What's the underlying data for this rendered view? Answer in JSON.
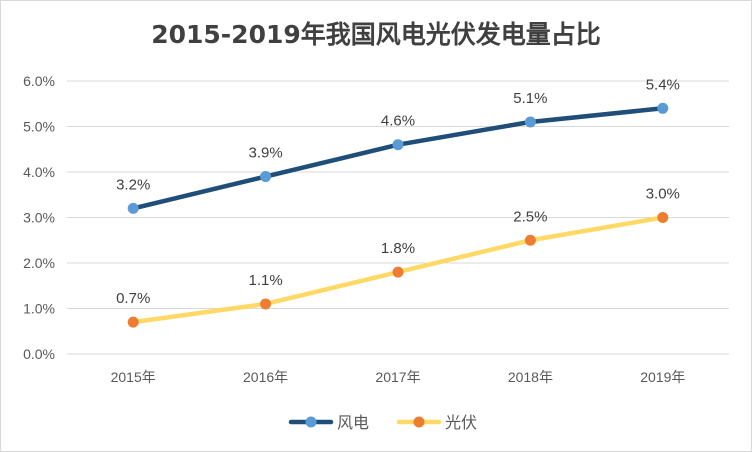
{
  "chart_data": {
    "type": "line",
    "title": "2015-2019年我国风电光伏发电量占比",
    "xlabel": "",
    "ylabel": "",
    "categories": [
      "2015年",
      "2016年",
      "2017年",
      "2018年",
      "2019年"
    ],
    "ylim": [
      0,
      6
    ],
    "yticks": [
      "0.0%",
      "1.0%",
      "2.0%",
      "3.0%",
      "4.0%",
      "5.0%",
      "6.0%"
    ],
    "grid": true,
    "legend": "bottom",
    "series": [
      {
        "name": "风电",
        "values": [
          3.2,
          3.9,
          4.6,
          5.1,
          5.4
        ],
        "labels": [
          "3.2%",
          "3.9%",
          "4.6%",
          "5.1%",
          "5.4%"
        ],
        "line_color": "#1f4e79",
        "marker_color": "#5b9bd5"
      },
      {
        "name": "光伏",
        "values": [
          0.7,
          1.1,
          1.8,
          2.5,
          3.0
        ],
        "labels": [
          "0.7%",
          "1.1%",
          "1.8%",
          "2.5%",
          "3.0%"
        ],
        "line_color": "#ffd966",
        "marker_color": "#ed7d31"
      }
    ]
  }
}
